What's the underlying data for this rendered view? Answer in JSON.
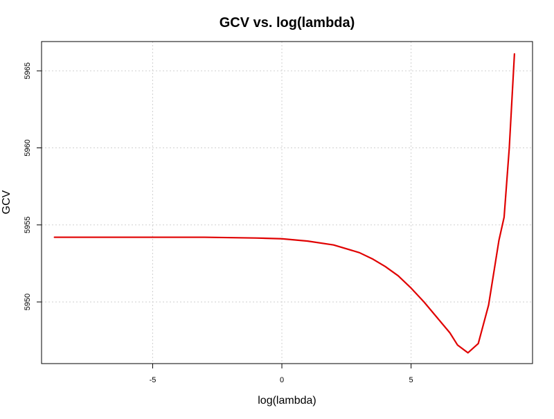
{
  "chart_data": {
    "type": "line",
    "title": "GCV vs. log(lambda)",
    "xlabel": "log(lambda)",
    "ylabel": "GCV",
    "xlim": [
      -9.3,
      9.7
    ],
    "ylim": [
      5946.0,
      5966.9
    ],
    "x_ticks": [
      -5,
      0,
      5
    ],
    "y_ticks": [
      5950,
      5955,
      5960,
      5965
    ],
    "grid": true,
    "line_color": "#e00000",
    "series": [
      {
        "x": [
          -8.8,
          -7.0,
          -5.0,
          -3.0,
          -1.0,
          0.0,
          1.0,
          2.0,
          3.0,
          3.5,
          4.0,
          4.5,
          5.0,
          5.5,
          6.0,
          6.5,
          6.8,
          7.2,
          7.6,
          8.0,
          8.4,
          8.6,
          8.8,
          9.0
        ],
        "y": [
          5954.2,
          5954.2,
          5954.2,
          5954.2,
          5954.15,
          5954.1,
          5953.95,
          5953.7,
          5953.2,
          5952.8,
          5952.3,
          5951.7,
          5950.9,
          5950.0,
          5949.0,
          5948.0,
          5947.2,
          5946.7,
          5947.3,
          5949.8,
          5954.0,
          5955.5,
          5960.0,
          5966.1
        ]
      }
    ]
  }
}
